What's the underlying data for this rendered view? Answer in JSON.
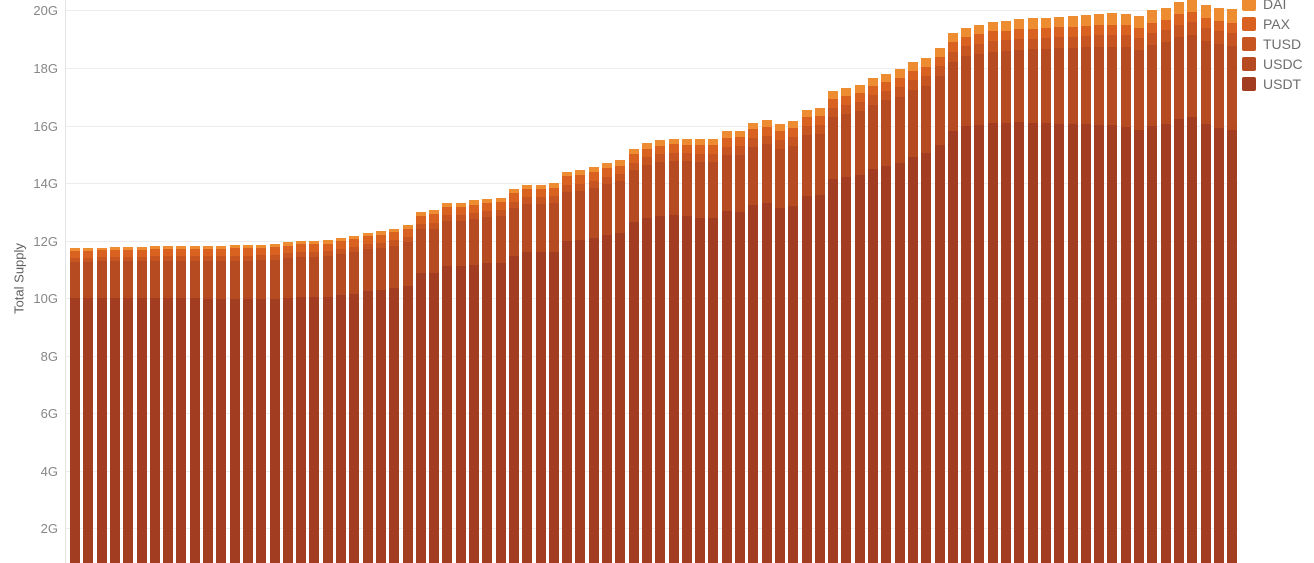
{
  "axis": {
    "ylabel": "Total Supply",
    "ytick_labels": [
      "2G",
      "4G",
      "6G",
      "8G",
      "10G",
      "12G",
      "14G",
      "16G",
      "18G",
      "20G"
    ],
    "ytick_values": [
      2,
      4,
      6,
      8,
      10,
      12,
      14,
      16,
      18,
      20
    ]
  },
  "legend": {
    "position": "top-right",
    "items": [
      {
        "label": "DAI",
        "color": "#ee8c31"
      },
      {
        "label": "PAX",
        "color": "#da6220"
      },
      {
        "label": "TUSD",
        "color": "#c75522"
      },
      {
        "label": "USDC",
        "color": "#b64a20"
      },
      {
        "label": "USDT",
        "color": "#a33d22"
      }
    ]
  },
  "chart_data": {
    "type": "bar",
    "stacked": true,
    "title": "",
    "xlabel": "",
    "ylabel": "Total Supply",
    "y_unit": "G",
    "ylim": [
      0,
      20.5
    ],
    "visible_y_window": [
      0.8,
      20.35
    ],
    "grid": "horizontal",
    "legend_position": "top-right",
    "n_bars": 88,
    "stack_order_bottom_to_top": [
      "USDT",
      "USDC",
      "TUSD",
      "PAX",
      "DAI"
    ],
    "series": [
      {
        "name": "DAI",
        "color": "#ee8c31",
        "values": [
          0.1,
          0.1,
          0.1,
          0.1,
          0.1,
          0.1,
          0.1,
          0.1,
          0.1,
          0.1,
          0.11,
          0.11,
          0.11,
          0.11,
          0.11,
          0.11,
          0.11,
          0.11,
          0.12,
          0.12,
          0.12,
          0.12,
          0.12,
          0.13,
          0.13,
          0.13,
          0.13,
          0.14,
          0.14,
          0.14,
          0.15,
          0.15,
          0.15,
          0.16,
          0.16,
          0.16,
          0.17,
          0.17,
          0.18,
          0.18,
          0.18,
          0.19,
          0.19,
          0.2,
          0.2,
          0.2,
          0.21,
          0.21,
          0.22,
          0.22,
          0.23,
          0.23,
          0.24,
          0.24,
          0.25,
          0.25,
          0.26,
          0.26,
          0.27,
          0.27,
          0.28,
          0.28,
          0.29,
          0.3,
          0.3,
          0.31,
          0.31,
          0.32,
          0.33,
          0.33,
          0.35,
          0.35,
          0.36,
          0.36,
          0.37,
          0.38,
          0.38,
          0.39,
          0.4,
          0.4,
          0.42,
          0.43,
          0.43,
          0.44,
          0.45,
          0.46,
          0.47,
          0.48
        ]
      },
      {
        "name": "PAX",
        "color": "#da6220",
        "values": [
          0.24,
          0.24,
          0.24,
          0.24,
          0.24,
          0.25,
          0.25,
          0.25,
          0.25,
          0.25,
          0.25,
          0.26,
          0.26,
          0.26,
          0.26,
          0.26,
          0.26,
          0.26,
          0.27,
          0.27,
          0.27,
          0.27,
          0.27,
          0.27,
          0.27,
          0.28,
          0.28,
          0.28,
          0.28,
          0.28,
          0.28,
          0.28,
          0.28,
          0.29,
          0.29,
          0.29,
          0.29,
          0.29,
          0.29,
          0.29,
          0.3,
          0.3,
          0.3,
          0.3,
          0.3,
          0.3,
          0.3,
          0.3,
          0.31,
          0.31,
          0.31,
          0.31,
          0.31,
          0.31,
          0.31,
          0.32,
          0.32,
          0.32,
          0.32,
          0.32,
          0.32,
          0.32,
          0.33,
          0.33,
          0.33,
          0.33,
          0.33,
          0.33,
          0.33,
          0.34,
          0.34,
          0.34,
          0.34,
          0.34,
          0.34,
          0.34,
          0.35,
          0.35,
          0.35,
          0.35,
          0.35,
          0.35,
          0.35,
          0.36,
          0.36,
          0.36,
          0.36,
          0.36
        ]
      },
      {
        "name": "TUSD",
        "color": "#c75522",
        "values": [
          0.14,
          0.14,
          0.14,
          0.15,
          0.15,
          0.15,
          0.15,
          0.15,
          0.16,
          0.16,
          0.16,
          0.16,
          0.17,
          0.17,
          0.17,
          0.17,
          0.18,
          0.18,
          0.18,
          0.18,
          0.19,
          0.19,
          0.19,
          0.19,
          0.2,
          0.2,
          0.2,
          0.21,
          0.21,
          0.21,
          0.22,
          0.22,
          0.22,
          0.23,
          0.23,
          0.23,
          0.24,
          0.24,
          0.24,
          0.25,
          0.25,
          0.25,
          0.26,
          0.26,
          0.27,
          0.27,
          0.27,
          0.28,
          0.28,
          0.28,
          0.29,
          0.29,
          0.3,
          0.3,
          0.3,
          0.31,
          0.31,
          0.31,
          0.32,
          0.32,
          0.33,
          0.33,
          0.33,
          0.34,
          0.34,
          0.35,
          0.35,
          0.35,
          0.36,
          0.36,
          0.37,
          0.37,
          0.37,
          0.38,
          0.38,
          0.39,
          0.39,
          0.4,
          0.41,
          0.41,
          0.42,
          0.42,
          0.43,
          0.43,
          0.44,
          0.44,
          0.45,
          0.45
        ]
      },
      {
        "name": "USDC",
        "color": "#b64a20",
        "values": [
          1.25,
          1.26,
          1.26,
          1.27,
          1.27,
          1.28,
          1.28,
          1.29,
          1.29,
          1.3,
          1.31,
          1.32,
          1.33,
          1.34,
          1.35,
          1.36,
          1.37,
          1.39,
          1.4,
          1.41,
          1.42,
          1.44,
          1.45,
          1.47,
          1.48,
          1.5,
          1.51,
          1.53,
          1.55,
          1.56,
          1.58,
          1.6,
          1.62,
          1.64,
          1.65,
          1.67,
          1.69,
          1.71,
          1.73,
          1.75,
          1.77,
          1.79,
          1.81,
          1.84,
          1.86,
          1.88,
          1.9,
          1.93,
          1.95,
          1.97,
          2.0,
          2.02,
          2.04,
          2.07,
          2.09,
          2.12,
          2.14,
          2.17,
          2.19,
          2.22,
          2.24,
          2.27,
          2.29,
          2.32,
          2.35,
          2.37,
          2.4,
          2.43,
          2.45,
          2.48,
          2.51,
          2.53,
          2.56,
          2.59,
          2.62,
          2.64,
          2.67,
          2.7,
          2.73,
          2.76,
          2.78,
          2.8,
          2.82,
          2.84,
          2.86,
          2.88,
          2.89,
          2.9
        ]
      },
      {
        "name": "USDT",
        "color": "#a33d22",
        "values": [
          10.02,
          10.01,
          10.02,
          10.02,
          10.02,
          10.01,
          10.02,
          10.01,
          10.01,
          10.0,
          9.99,
          9.98,
          9.97,
          9.96,
          9.97,
          9.98,
          10.02,
          10.04,
          10.03,
          10.04,
          10.1,
          10.16,
          10.25,
          10.27,
          10.34,
          10.44,
          10.88,
          10.89,
          11.12,
          11.11,
          11.17,
          11.21,
          11.23,
          11.48,
          11.62,
          11.6,
          11.61,
          11.99,
          12.01,
          12.08,
          12.2,
          12.27,
          12.64,
          12.8,
          12.87,
          12.9,
          12.87,
          12.8,
          12.79,
          13.02,
          12.99,
          13.25,
          13.31,
          13.13,
          13.2,
          13.55,
          13.57,
          14.14,
          14.2,
          14.27,
          14.48,
          14.6,
          14.71,
          14.91,
          15.03,
          15.34,
          15.81,
          15.97,
          16.03,
          16.09,
          16.08,
          16.11,
          16.09,
          16.08,
          16.07,
          16.05,
          16.06,
          16.03,
          16.01,
          15.96,
          15.83,
          16.0,
          16.07,
          16.23,
          16.29,
          16.06,
          15.93,
          15.86
        ]
      }
    ]
  }
}
